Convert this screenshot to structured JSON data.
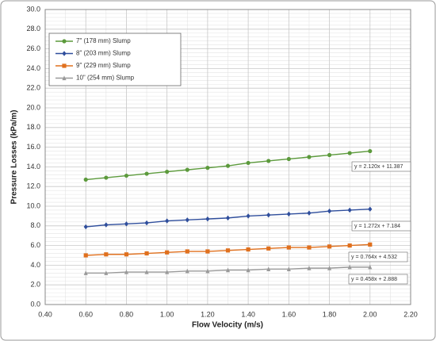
{
  "chart_data": {
    "type": "line",
    "x_label": "Flow Velocity (m/s)",
    "y_label": "Pressure Losses (kPa/m)",
    "x": [
      0.6,
      0.7,
      0.8,
      0.9,
      1.0,
      1.1,
      1.2,
      1.3,
      1.4,
      1.5,
      1.6,
      1.7,
      1.8,
      1.9,
      2.0
    ],
    "series": [
      {
        "name": "7\" (178 mm) Slump",
        "color": "#5c9a3c",
        "marker": "circle",
        "values": [
          12.7,
          12.9,
          13.1,
          13.3,
          13.5,
          13.7,
          13.9,
          14.1,
          14.4,
          14.6,
          14.8,
          15.0,
          15.2,
          15.4,
          15.6
        ]
      },
      {
        "name": "8\" (203 mm) Slump",
        "color": "#2f4e9c",
        "marker": "diamond",
        "values": [
          7.9,
          8.1,
          8.2,
          8.3,
          8.5,
          8.6,
          8.7,
          8.8,
          9.0,
          9.1,
          9.2,
          9.3,
          9.5,
          9.6,
          9.7
        ]
      },
      {
        "name": "9\" (229 mm) Slump",
        "color": "#e0701e",
        "marker": "square",
        "values": [
          5.0,
          5.1,
          5.1,
          5.2,
          5.3,
          5.4,
          5.4,
          5.5,
          5.6,
          5.7,
          5.8,
          5.8,
          5.9,
          6.0,
          6.1
        ]
      },
      {
        "name": "10\" (254 mm) Slump",
        "color": "#9a9a9a",
        "marker": "triangle",
        "values": [
          3.2,
          3.2,
          3.3,
          3.3,
          3.3,
          3.4,
          3.4,
          3.5,
          3.5,
          3.6,
          3.6,
          3.7,
          3.7,
          3.8,
          3.8
        ]
      }
    ],
    "annotations": [
      "y = 2.120x + 11.387",
      "y = 1.272x + 7.184",
      "y = 0.764x + 4.532",
      "y = 0.458x + 2.888"
    ],
    "xlim": [
      0.4,
      2.2
    ],
    "xticks": [
      {
        "value": 0.4,
        "label": "0.40"
      },
      {
        "value": 0.6,
        "label": "0.60"
      },
      {
        "value": 0.8,
        "label": "0.80"
      },
      {
        "value": 1.0,
        "label": "1.00"
      },
      {
        "value": 1.2,
        "label": "1.20"
      },
      {
        "value": 1.4,
        "label": "1.40"
      },
      {
        "value": 1.6,
        "label": "1.60"
      },
      {
        "value": 1.8,
        "label": "1.80"
      },
      {
        "value": 2.0,
        "label": "2.00"
      },
      {
        "value": 2.2,
        "label": "2.20"
      }
    ],
    "ylim": [
      0,
      30
    ],
    "yticks": [
      {
        "value": 0,
        "label": "0.0"
      },
      {
        "value": 2,
        "label": "2.0"
      },
      {
        "value": 4,
        "label": "4.0"
      },
      {
        "value": 6,
        "label": "6.0"
      },
      {
        "value": 8,
        "label": "8.0"
      },
      {
        "value": 10,
        "label": "10.0"
      },
      {
        "value": 12,
        "label": "12.0"
      },
      {
        "value": 14,
        "label": "14.0"
      },
      {
        "value": 16,
        "label": "16.0"
      },
      {
        "value": 18,
        "label": "18.0"
      },
      {
        "value": 20,
        "label": "20.0"
      },
      {
        "value": 22,
        "label": "22.0"
      },
      {
        "value": 24,
        "label": "24.0"
      },
      {
        "value": 26,
        "label": "26.0"
      },
      {
        "value": 28,
        "label": "28.0"
      },
      {
        "value": 30,
        "label": "30.0"
      }
    ],
    "grid": true,
    "minor_grid": true,
    "legend": "upper left"
  }
}
